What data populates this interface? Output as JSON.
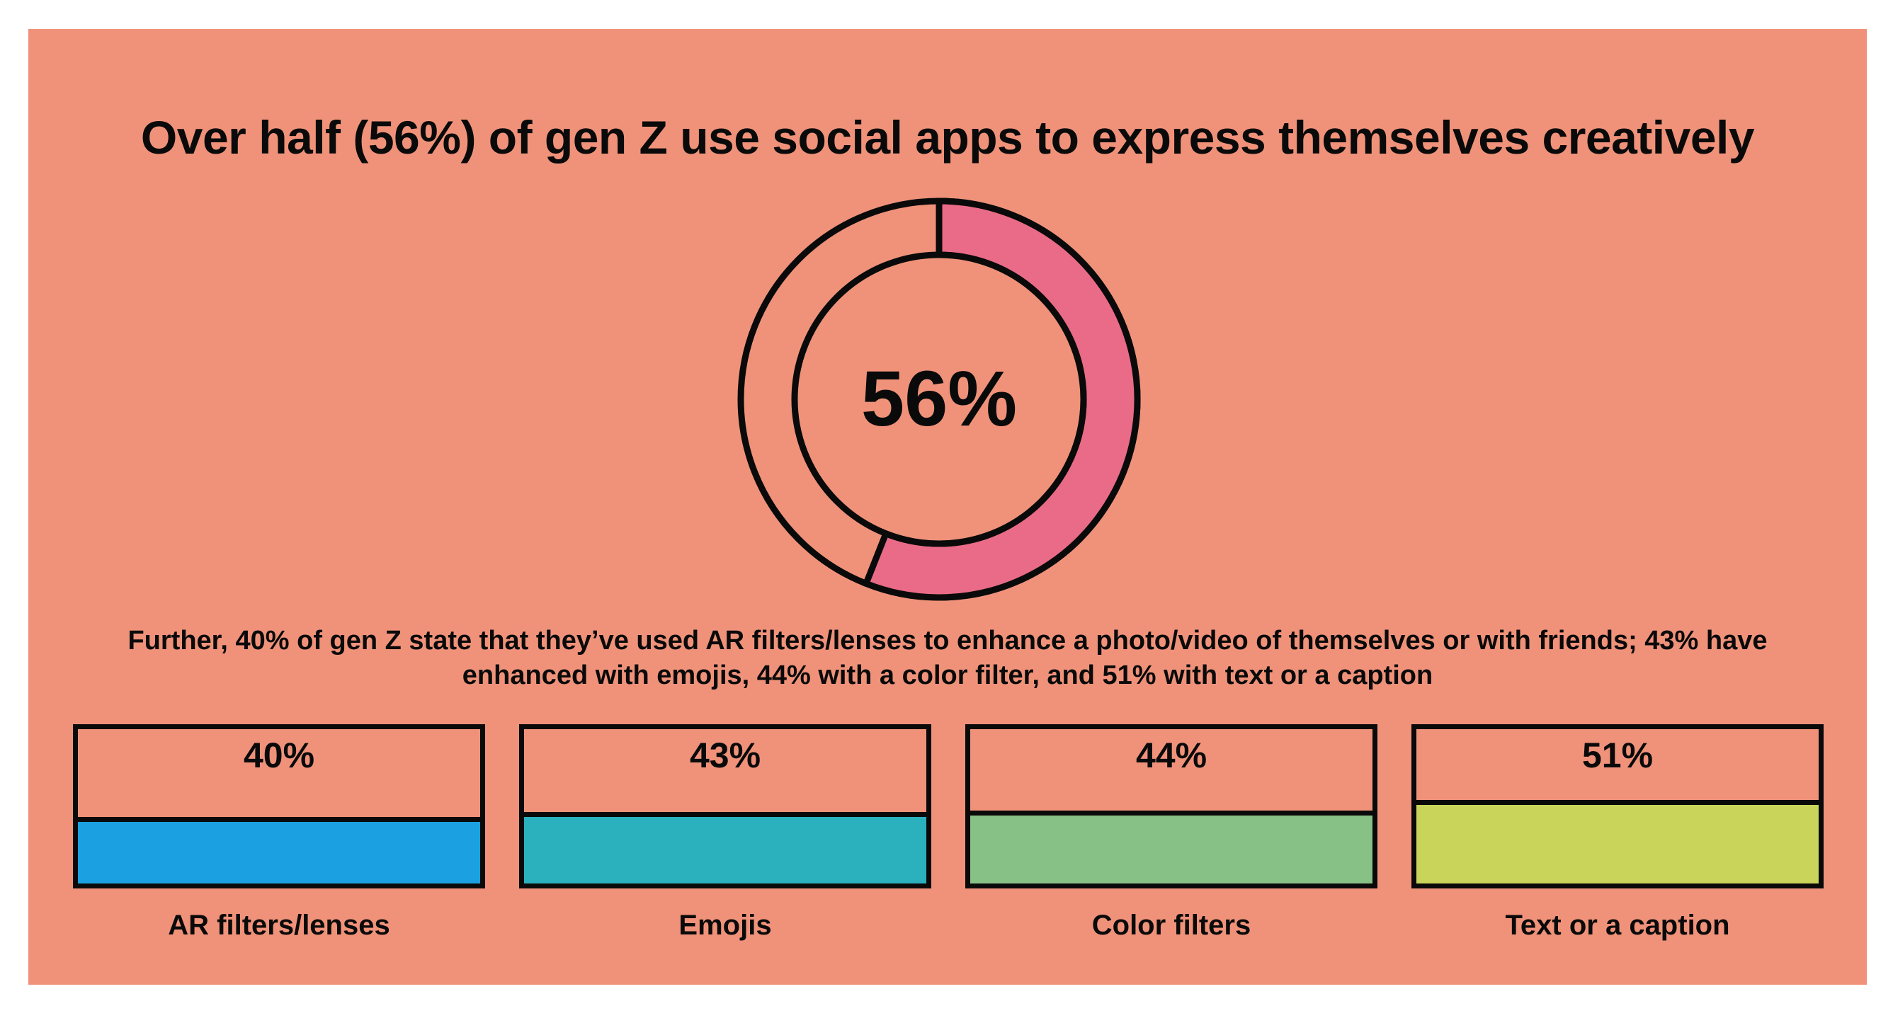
{
  "title": "Over half (56%) of gen Z use social apps to express themselves creatively",
  "description": "Further, 40% of gen Z state that they’ve used AR filters/lenses to enhance a photo/video of themselves or with friends; 43% have enhanced with emojis, 44% with a color filter, and 51% with text or a caption",
  "colors": {
    "background": "#f0927a",
    "outline": "#0a0a0a",
    "donut_fill": "#ea6b87"
  },
  "chart_data": [
    {
      "type": "pie",
      "style": "donut",
      "value": 56,
      "center_label": "56%",
      "color": "#ea6b87"
    },
    {
      "type": "bar",
      "categories": [
        "AR filters/lenses",
        "Emojis",
        "Color filters",
        "Text or a caption"
      ],
      "values": [
        40,
        43,
        44,
        51
      ],
      "value_labels": [
        "40%",
        "43%",
        "44%",
        "51%"
      ],
      "colors": [
        "#1ba1e2",
        "#2bb0bd",
        "#88c186",
        "#c8d55a"
      ]
    }
  ]
}
